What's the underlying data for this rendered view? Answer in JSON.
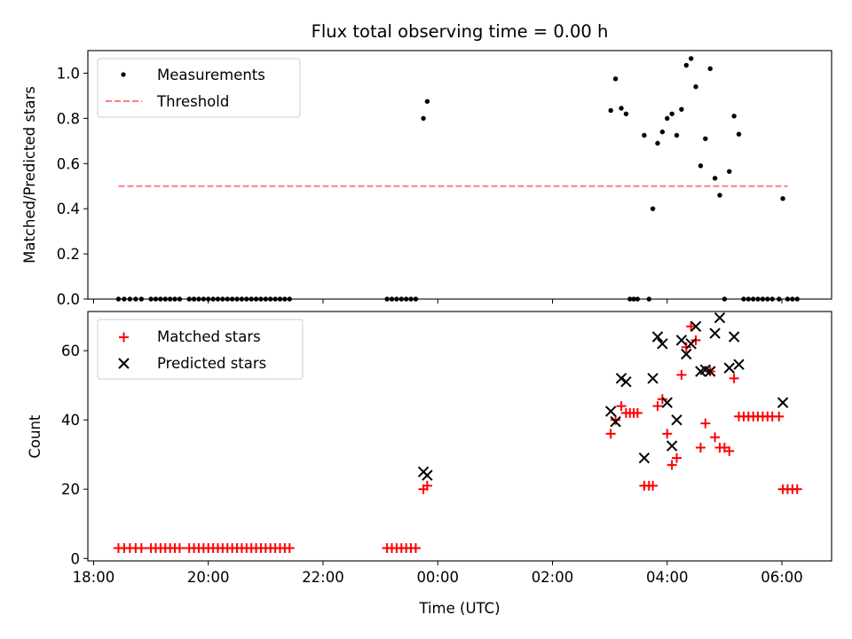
{
  "chart_data": [
    {
      "type": "scatter",
      "title": "Flux total observing time = 0.00 h",
      "xlabel": "",
      "ylabel": "Matched/Predicted stars",
      "ylim": [
        0,
        1.1
      ],
      "xlim": [
        "17:54",
        "06:52"
      ],
      "yticks": [
        "0.0",
        "0.2",
        "0.4",
        "0.6",
        "0.8",
        "1.0"
      ],
      "legend_position": "top-left",
      "grid": false,
      "series": [
        {
          "name": "Measurements",
          "marker": "dot",
          "color": "#000000",
          "points": [
            [
              "18:26",
              0
            ],
            [
              "18:32",
              0
            ],
            [
              "18:38",
              0
            ],
            [
              "18:44",
              0
            ],
            [
              "18:50",
              0
            ],
            [
              "19:00",
              0
            ],
            [
              "19:05",
              0
            ],
            [
              "19:10",
              0
            ],
            [
              "19:15",
              0
            ],
            [
              "19:20",
              0
            ],
            [
              "19:25",
              0
            ],
            [
              "19:30",
              0
            ],
            [
              "19:40",
              0
            ],
            [
              "19:45",
              0
            ],
            [
              "19:50",
              0
            ],
            [
              "19:55",
              0
            ],
            [
              "20:00",
              0
            ],
            [
              "20:05",
              0
            ],
            [
              "20:10",
              0
            ],
            [
              "20:15",
              0
            ],
            [
              "20:20",
              0
            ],
            [
              "20:25",
              0
            ],
            [
              "20:30",
              0
            ],
            [
              "20:35",
              0
            ],
            [
              "20:40",
              0
            ],
            [
              "20:45",
              0
            ],
            [
              "20:50",
              0
            ],
            [
              "20:55",
              0
            ],
            [
              "21:00",
              0
            ],
            [
              "21:05",
              0
            ],
            [
              "21:10",
              0
            ],
            [
              "21:15",
              0
            ],
            [
              "21:20",
              0
            ],
            [
              "21:25",
              0
            ],
            [
              "23:07",
              0
            ],
            [
              "23:12",
              0
            ],
            [
              "23:17",
              0
            ],
            [
              "23:22",
              0
            ],
            [
              "23:27",
              0
            ],
            [
              "23:32",
              0
            ],
            [
              "23:37",
              0
            ],
            [
              "23:45",
              0.8
            ],
            [
              "23:49",
              0.875
            ],
            [
              "03:01",
              0.835
            ],
            [
              "03:06",
              0.975
            ],
            [
              "03:12",
              0.845
            ],
            [
              "03:17",
              0.82
            ],
            [
              "03:21",
              0
            ],
            [
              "03:25",
              0
            ],
            [
              "03:29",
              0
            ],
            [
              "03:36",
              0.725
            ],
            [
              "03:41",
              0
            ],
            [
              "03:45",
              0.4
            ],
            [
              "03:50",
              0.69
            ],
            [
              "03:55",
              0.74
            ],
            [
              "04:00",
              0.8
            ],
            [
              "04:05",
              0.82
            ],
            [
              "04:10",
              0.725
            ],
            [
              "04:15",
              0.84
            ],
            [
              "04:20",
              1.035
            ],
            [
              "04:25",
              1.065
            ],
            [
              "04:30",
              0.94
            ],
            [
              "04:35",
              0.59
            ],
            [
              "04:40",
              0.71
            ],
            [
              "04:45",
              1.02
            ],
            [
              "04:50",
              0.535
            ],
            [
              "04:55",
              0.46
            ],
            [
              "05:00",
              0
            ],
            [
              "05:05",
              0.565
            ],
            [
              "05:10",
              0.81
            ],
            [
              "05:15",
              0.73
            ],
            [
              "05:20",
              0
            ],
            [
              "05:25",
              0
            ],
            [
              "05:30",
              0
            ],
            [
              "05:35",
              0
            ],
            [
              "05:40",
              0
            ],
            [
              "05:45",
              0
            ],
            [
              "05:50",
              0
            ],
            [
              "05:57",
              0
            ],
            [
              "06:01",
              0.445
            ],
            [
              "06:06",
              0
            ],
            [
              "06:11",
              0
            ],
            [
              "06:16",
              0
            ]
          ]
        },
        {
          "name": "Threshold",
          "marker": "dashed-line",
          "color": "#ff7f7f",
          "points": [
            [
              "18:26",
              0.5
            ],
            [
              "06:06",
              0.5
            ]
          ]
        }
      ]
    },
    {
      "type": "scatter",
      "title": "",
      "xlabel": "Time (UTC)",
      "ylabel": "Count",
      "ylim": [
        0,
        72
      ],
      "xlim": [
        "17:54",
        "06:52"
      ],
      "yticks": [
        "0",
        "20",
        "40",
        "60"
      ],
      "xticks": [
        "18:00",
        "20:00",
        "22:00",
        "00:00",
        "02:00",
        "04:00",
        "06:00"
      ],
      "legend_position": "top-left",
      "grid": false,
      "series": [
        {
          "name": "Matched stars",
          "marker": "plus",
          "color": "#ff0000",
          "points": [
            [
              "18:26",
              3
            ],
            [
              "18:32",
              3
            ],
            [
              "18:38",
              3
            ],
            [
              "18:44",
              3
            ],
            [
              "18:50",
              3
            ],
            [
              "19:00",
              3
            ],
            [
              "19:05",
              3
            ],
            [
              "19:10",
              3
            ],
            [
              "19:15",
              3
            ],
            [
              "19:20",
              3
            ],
            [
              "19:25",
              3
            ],
            [
              "19:30",
              3
            ],
            [
              "19:40",
              3
            ],
            [
              "19:45",
              3
            ],
            [
              "19:50",
              3
            ],
            [
              "19:55",
              3
            ],
            [
              "20:00",
              3
            ],
            [
              "20:05",
              3
            ],
            [
              "20:10",
              3
            ],
            [
              "20:15",
              3
            ],
            [
              "20:20",
              3
            ],
            [
              "20:25",
              3
            ],
            [
              "20:30",
              3
            ],
            [
              "20:35",
              3
            ],
            [
              "20:40",
              3
            ],
            [
              "20:45",
              3
            ],
            [
              "20:50",
              3
            ],
            [
              "20:55",
              3
            ],
            [
              "21:00",
              3
            ],
            [
              "21:05",
              3
            ],
            [
              "21:10",
              3
            ],
            [
              "21:15",
              3
            ],
            [
              "21:20",
              3
            ],
            [
              "21:25",
              3
            ],
            [
              "23:07",
              3
            ],
            [
              "23:12",
              3
            ],
            [
              "23:17",
              3
            ],
            [
              "23:22",
              3
            ],
            [
              "23:27",
              3
            ],
            [
              "23:32",
              3
            ],
            [
              "23:37",
              3
            ],
            [
              "23:45",
              20
            ],
            [
              "23:49",
              21
            ],
            [
              "03:01",
              36
            ],
            [
              "03:06",
              40
            ],
            [
              "03:12",
              44
            ],
            [
              "03:17",
              42
            ],
            [
              "03:21",
              42
            ],
            [
              "03:25",
              42
            ],
            [
              "03:29",
              42
            ],
            [
              "03:36",
              21
            ],
            [
              "03:41",
              21
            ],
            [
              "03:45",
              21
            ],
            [
              "03:50",
              44
            ],
            [
              "03:55",
              46
            ],
            [
              "04:00",
              36
            ],
            [
              "04:05",
              27
            ],
            [
              "04:10",
              29
            ],
            [
              "04:15",
              53
            ],
            [
              "04:20",
              61
            ],
            [
              "04:25",
              67
            ],
            [
              "04:30",
              63
            ],
            [
              "04:35",
              32
            ],
            [
              "04:40",
              39
            ],
            [
              "04:45",
              54
            ],
            [
              "04:50",
              35
            ],
            [
              "04:55",
              32
            ],
            [
              "05:00",
              32
            ],
            [
              "05:05",
              31
            ],
            [
              "05:10",
              52
            ],
            [
              "05:15",
              41
            ],
            [
              "05:20",
              41
            ],
            [
              "05:25",
              41
            ],
            [
              "05:30",
              41
            ],
            [
              "05:35",
              41
            ],
            [
              "05:40",
              41
            ],
            [
              "05:45",
              41
            ],
            [
              "05:50",
              41
            ],
            [
              "05:57",
              41
            ],
            [
              "06:01",
              20
            ],
            [
              "06:06",
              20
            ],
            [
              "06:11",
              20
            ],
            [
              "06:16",
              20
            ]
          ]
        },
        {
          "name": "Predicted stars",
          "marker": "x",
          "color": "#000000",
          "points": [
            [
              "23:45",
              25
            ],
            [
              "23:49",
              24
            ],
            [
              "03:01",
              42.5
            ],
            [
              "03:06",
              39.5
            ],
            [
              "03:12",
              52
            ],
            [
              "03:17",
              51
            ],
            [
              "03:36",
              29
            ],
            [
              "03:45",
              52
            ],
            [
              "03:50",
              64
            ],
            [
              "03:55",
              62
            ],
            [
              "04:00",
              45
            ],
            [
              "04:05",
              32.5
            ],
            [
              "04:10",
              40
            ],
            [
              "04:15",
              63
            ],
            [
              "04:20",
              59
            ],
            [
              "04:25",
              62
            ],
            [
              "04:30",
              67
            ],
            [
              "04:35",
              54
            ],
            [
              "04:40",
              54.5
            ],
            [
              "04:45",
              54
            ],
            [
              "04:50",
              65
            ],
            [
              "04:55",
              69.5
            ],
            [
              "05:05",
              55
            ],
            [
              "05:10",
              64
            ],
            [
              "05:15",
              56
            ],
            [
              "06:01",
              45
            ]
          ]
        }
      ]
    }
  ]
}
